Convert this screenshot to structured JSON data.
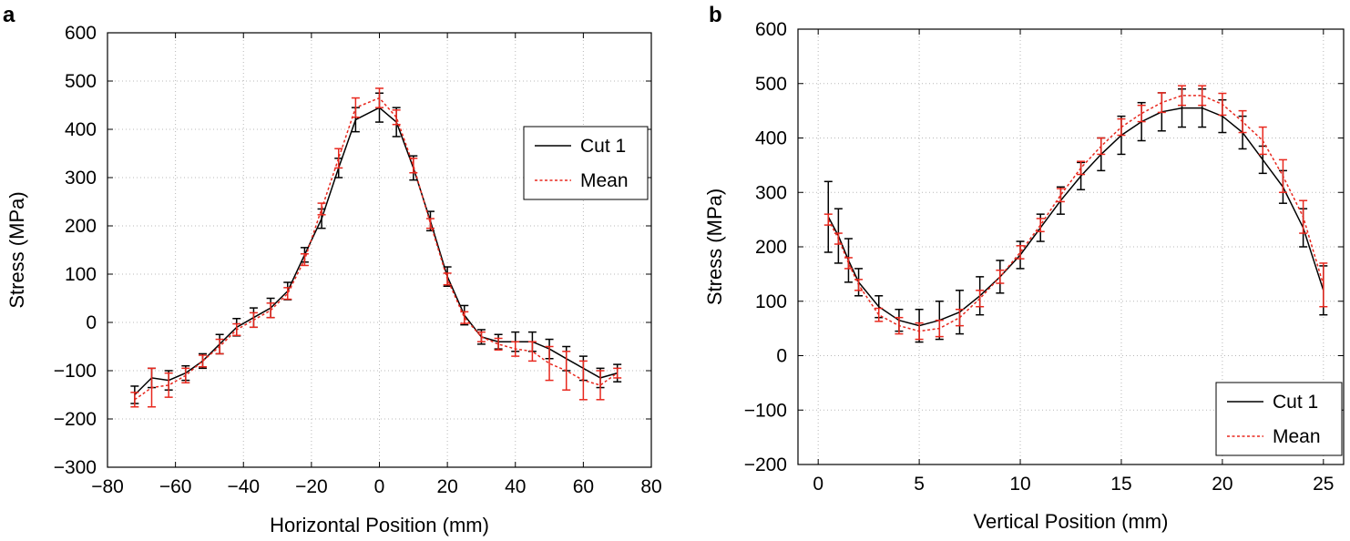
{
  "chart_data": [
    {
      "type": "line",
      "panel_label": "a",
      "xlabel": "Horizontal Position (mm)",
      "ylabel": "Stress (MPa)",
      "xlim": [
        -80,
        80
      ],
      "ylim": [
        -300,
        600
      ],
      "xticks": [
        -80,
        -60,
        -40,
        -20,
        0,
        20,
        40,
        60,
        80
      ],
      "yticks": [
        -300,
        -200,
        -100,
        0,
        100,
        200,
        300,
        400,
        500,
        600
      ],
      "xtick_labels": [
        "−80",
        "−60",
        "−40",
        "−20",
        "0",
        "20",
        "40",
        "60",
        "80"
      ],
      "ytick_labels": [
        "−300",
        "−200",
        "−100",
        "0",
        "100",
        "200",
        "300",
        "400",
        "500",
        "600"
      ],
      "grid": true,
      "legend_position": "upper-right",
      "series": [
        {
          "name": "Cut 1",
          "color": "#000000",
          "style": "solid",
          "x": [
            -72,
            -67,
            -62,
            -57,
            -52,
            -47,
            -42,
            -37,
            -32,
            -27,
            -22,
            -17,
            -12,
            -7,
            0,
            5,
            10,
            15,
            20,
            25,
            30,
            35,
            40,
            45,
            50,
            55,
            60,
            65,
            70
          ],
          "y": [
            -150,
            -115,
            -120,
            -105,
            -80,
            -45,
            -10,
            10,
            30,
            65,
            140,
            215,
            320,
            420,
            445,
            415,
            320,
            210,
            95,
            15,
            -30,
            -40,
            -40,
            -40,
            -55,
            -75,
            -95,
            -115,
            -105
          ],
          "err": [
            18,
            20,
            20,
            15,
            15,
            20,
            18,
            20,
            20,
            18,
            15,
            20,
            20,
            25,
            30,
            30,
            25,
            20,
            20,
            20,
            15,
            15,
            20,
            20,
            20,
            25,
            25,
            20,
            18
          ]
        },
        {
          "name": "Mean",
          "color": "#e8281e",
          "style": "dashed",
          "x": [
            -72,
            -67,
            -62,
            -57,
            -52,
            -47,
            -42,
            -37,
            -32,
            -27,
            -22,
            -17,
            -12,
            -7,
            0,
            5,
            10,
            15,
            20,
            25,
            30,
            35,
            40,
            45,
            50,
            55,
            60,
            65,
            70
          ],
          "y": [
            -160,
            -135,
            -130,
            -110,
            -80,
            -50,
            -15,
            5,
            25,
            60,
            130,
            235,
            340,
            445,
            465,
            425,
            325,
            205,
            90,
            10,
            -30,
            -45,
            -55,
            -60,
            -85,
            -100,
            -120,
            -130,
            -105
          ],
          "err": [
            15,
            40,
            25,
            15,
            12,
            15,
            12,
            15,
            15,
            12,
            12,
            12,
            20,
            20,
            20,
            15,
            15,
            10,
            12,
            12,
            10,
            12,
            15,
            20,
            35,
            40,
            40,
            30,
            10
          ]
        }
      ]
    },
    {
      "type": "line",
      "panel_label": "b",
      "xlabel": "Vertical Position (mm)",
      "ylabel": "Stress (MPa)",
      "xlim": [
        -1,
        26
      ],
      "ylim": [
        -200,
        600
      ],
      "xticks": [
        0,
        5,
        10,
        15,
        20,
        25
      ],
      "yticks": [
        -200,
        -100,
        0,
        100,
        200,
        300,
        400,
        500,
        600
      ],
      "xtick_labels": [
        "0",
        "5",
        "10",
        "15",
        "20",
        "25"
      ],
      "ytick_labels": [
        "−200",
        "−100",
        "0",
        "100",
        "200",
        "300",
        "400",
        "500",
        "600"
      ],
      "grid": true,
      "legend_position": "lower-right",
      "series": [
        {
          "name": "Cut 1",
          "color": "#000000",
          "style": "solid",
          "x": [
            0.5,
            1,
            1.5,
            2,
            3,
            4,
            5,
            6,
            7,
            8,
            9,
            10,
            11,
            12,
            13,
            14,
            15,
            16,
            17,
            18,
            19,
            20,
            21,
            22,
            23,
            24,
            25
          ],
          "y": [
            255,
            220,
            175,
            135,
            90,
            65,
            55,
            65,
            80,
            110,
            145,
            185,
            235,
            285,
            330,
            370,
            405,
            430,
            448,
            455,
            455,
            440,
            410,
            360,
            310,
            235,
            120
          ],
          "err": [
            65,
            50,
            40,
            25,
            20,
            20,
            30,
            35,
            40,
            35,
            30,
            25,
            25,
            25,
            25,
            30,
            35,
            35,
            35,
            35,
            35,
            30,
            30,
            25,
            30,
            35,
            45
          ]
        },
        {
          "name": "Mean",
          "color": "#e8281e",
          "style": "dashed",
          "x": [
            0.5,
            1,
            1.5,
            2,
            3,
            4,
            5,
            6,
            7,
            8,
            9,
            10,
            11,
            12,
            13,
            14,
            15,
            16,
            17,
            18,
            19,
            20,
            21,
            22,
            23,
            24,
            25
          ],
          "y": [
            250,
            215,
            170,
            130,
            75,
            55,
            45,
            50,
            70,
            105,
            145,
            190,
            240,
            295,
            345,
            385,
            420,
            445,
            465,
            478,
            478,
            462,
            430,
            395,
            330,
            255,
            130
          ],
          "err": [
            10,
            10,
            10,
            10,
            12,
            15,
            15,
            15,
            15,
            15,
            12,
            12,
            12,
            12,
            12,
            15,
            15,
            15,
            18,
            18,
            18,
            20,
            20,
            25,
            30,
            30,
            40
          ]
        }
      ]
    }
  ]
}
